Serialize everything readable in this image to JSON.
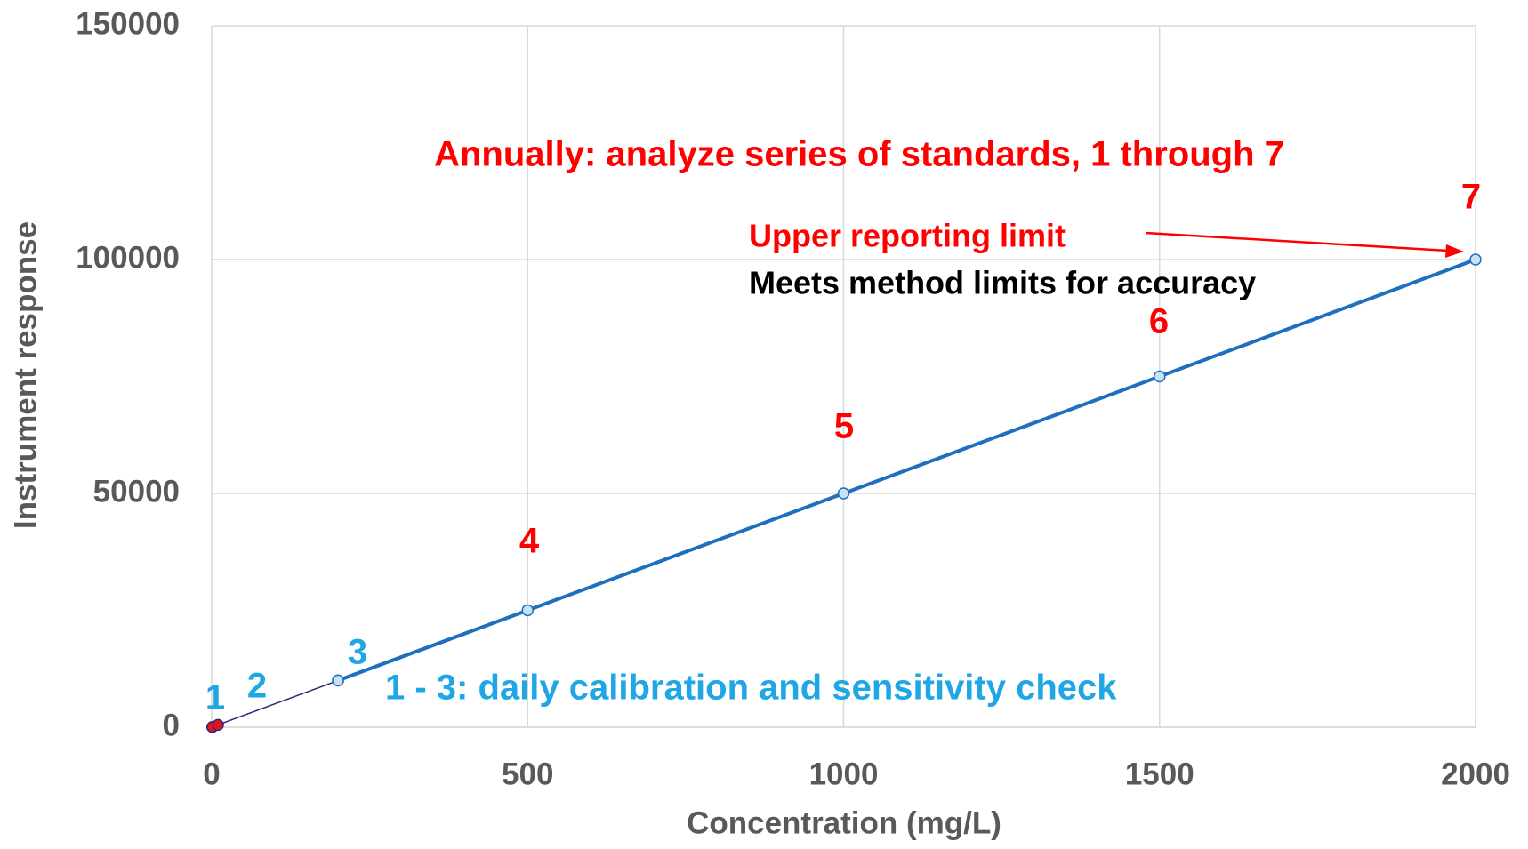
{
  "chart_data": {
    "type": "line",
    "x_label": "Concentration (mg/L)",
    "y_label": "Instrument response",
    "xlim": [
      0,
      2000
    ],
    "ylim": [
      0,
      150000
    ],
    "xticks": [
      0,
      500,
      1000,
      1500,
      2000
    ],
    "yticks": [
      0,
      50000,
      100000,
      150000
    ],
    "grid": true,
    "series": [
      {
        "color": "#2e2a7a",
        "marker_color": "#e0141e",
        "line_width": 1.5,
        "x": [
          1,
          10,
          200
        ],
        "values": [
          50,
          500,
          10000
        ]
      },
      {
        "color": "#1f6fbf",
        "marker_color": "#c5e3f2",
        "line_width": 4,
        "x": [
          200,
          500,
          1000,
          1500,
          2000
        ],
        "values": [
          10000,
          25000,
          50000,
          75000,
          100000
        ]
      }
    ],
    "point_labels": [
      "1",
      "2",
      "3",
      "4",
      "5",
      "6",
      "7"
    ],
    "annotations": [
      "Annually: analyze series of standards, 1 through 7",
      "Upper reporting limit",
      "Meets method limits for accuracy",
      "1 - 3: daily calibration and sensitivity check"
    ]
  }
}
